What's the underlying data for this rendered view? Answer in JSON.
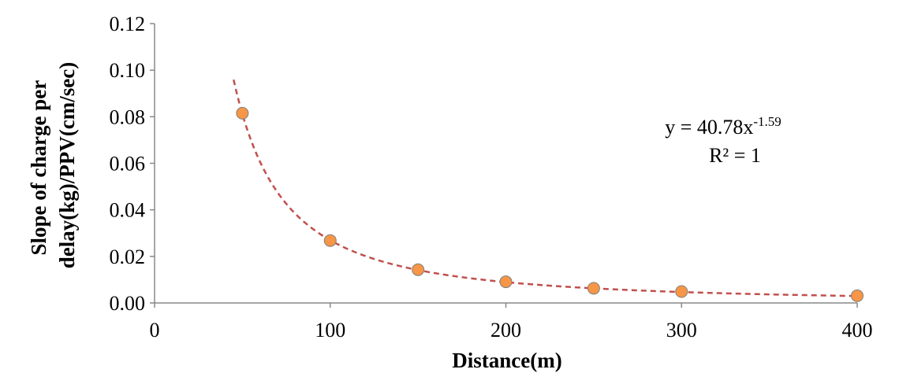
{
  "chart_data": {
    "type": "scatter",
    "xlabel": "Distance(m)",
    "ylabel_lines": [
      "Slope of charge per",
      "delay(kg)/PPV(cm/sec)"
    ],
    "xlim": [
      0,
      400
    ],
    "ylim": [
      0,
      0.12
    ],
    "x_ticks": [
      "0",
      "100",
      "200",
      "300",
      "400"
    ],
    "y_ticks": [
      "0.00",
      "0.02",
      "0.04",
      "0.06",
      "0.08",
      "0.10",
      "0.12"
    ],
    "grid": false,
    "marker_color": "#F79646",
    "trend_color": "#C0504D",
    "series": [
      {
        "x": [
          50,
          100,
          150,
          200,
          250,
          300,
          400
        ],
        "y": [
          0.0815,
          0.0268,
          0.0143,
          0.0091,
          0.0063,
          0.0049,
          0.0031
        ]
      }
    ],
    "trendline": {
      "type": "power",
      "a": 40.78,
      "b": -1.59,
      "x_range": [
        45,
        400
      ]
    },
    "annotation": {
      "eq_prefix": "y = 40.78x",
      "eq_exponent": "-1.59",
      "r2": "R² = 1"
    }
  }
}
